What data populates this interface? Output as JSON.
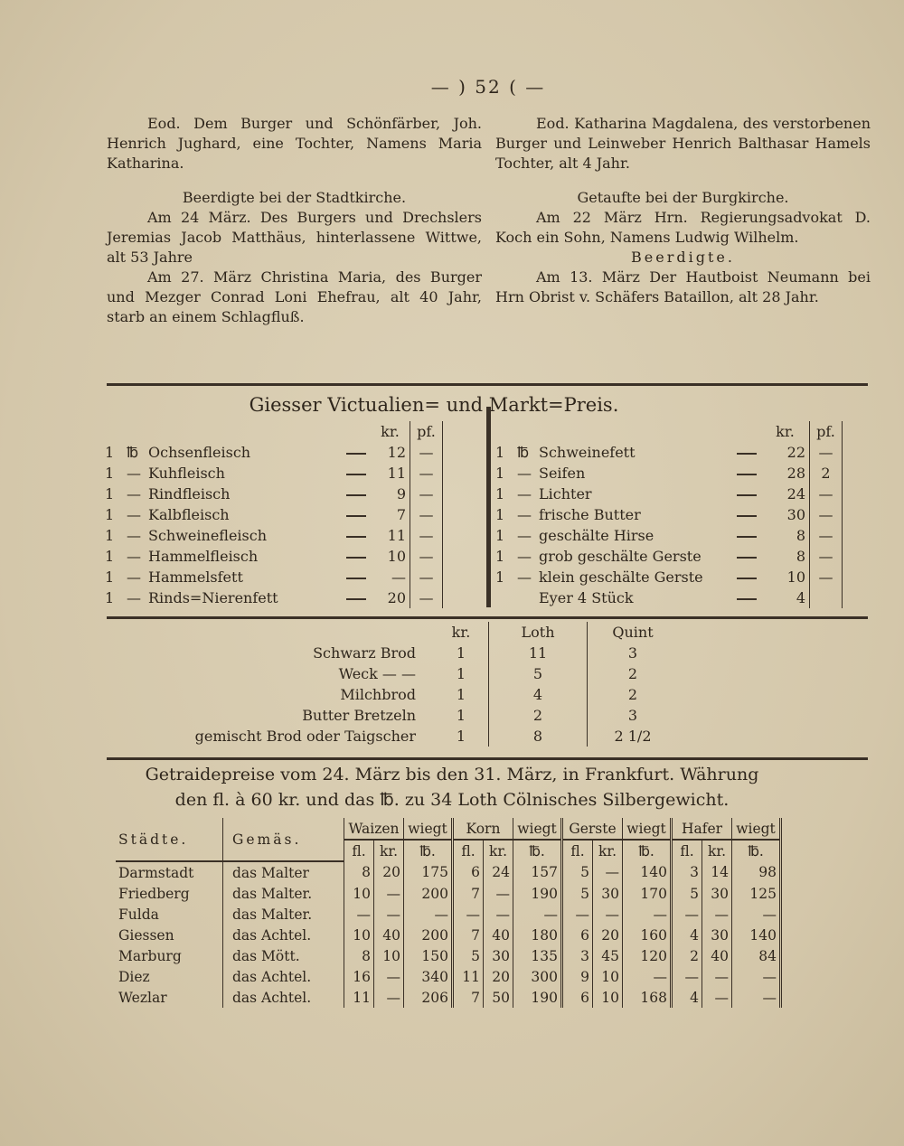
{
  "page_number": "— ) 52 ( —",
  "left_column": {
    "para1": "Eod. Dem Burger und Schönfärber, Joh. Henrich Jughard, eine Tochter, Namens Maria Katharina.",
    "heading": "Beerdigte bei der Stadtkirche.",
    "para2": "Am 24 März. Des Burgers und Drechslers Jeremias Jacob Matthäus, hinterlassene Wittwe, alt 53 Jahre",
    "para3": "Am 27. März Christina Maria, des Burger und Mezger Conrad Loni Ehefrau, alt 40 Jahr, starb an einem Schlagfluß."
  },
  "right_column": {
    "para1": "Eod. Katharina Magdalena, des verstorbenen Burger und Leinweber Henrich Balthasar Hamels Tochter, alt 4 Jahr.",
    "heading1": "Getaufte bei der Burgkirche.",
    "para2": "Am 22 März Hrn. Regierungsadvokat D. Koch ein Sohn, Namens Ludwig Wilhelm.",
    "heading2": "Beerdigte.",
    "para3": "Am 13. März Der Hautboist Neumann bei Hrn Obrist v. Schäfers Bataillon, alt 28 Jahr."
  },
  "market": {
    "title": "Giesser Victualien= und Markt=Preis.",
    "col_kr": "kr.",
    "col_pf": "pf.",
    "left": [
      {
        "qty": "1",
        "unit": "℔",
        "item": "Ochsenfleisch",
        "kr": "12",
        "pf": "—"
      },
      {
        "qty": "1",
        "unit": "—",
        "item": "Kuhfleisch",
        "kr": "11",
        "pf": "—"
      },
      {
        "qty": "1",
        "unit": "—",
        "item": "Rindfleisch",
        "kr": "9",
        "pf": "—"
      },
      {
        "qty": "1",
        "unit": "—",
        "item": "Kalbfleisch",
        "kr": "7",
        "pf": "—"
      },
      {
        "qty": "1",
        "unit": "—",
        "item": "Schweinefleisch",
        "kr": "11",
        "pf": "—"
      },
      {
        "qty": "1",
        "unit": "—",
        "item": "Hammelfleisch",
        "kr": "10",
        "pf": "—"
      },
      {
        "qty": "1",
        "unit": "—",
        "item": "Hammelsfett",
        "kr": "—",
        "pf": "—"
      },
      {
        "qty": "1",
        "unit": "—",
        "item": "Rinds=Nierenfett",
        "kr": "20",
        "pf": "—"
      }
    ],
    "right": [
      {
        "qty": "1",
        "unit": "℔",
        "item": "Schweinefett",
        "kr": "22",
        "pf": "—"
      },
      {
        "qty": "1",
        "unit": "—",
        "item": "Seifen",
        "kr": "28",
        "pf": "2"
      },
      {
        "qty": "1",
        "unit": "—",
        "item": "Lichter",
        "kr": "24",
        "pf": "—"
      },
      {
        "qty": "1",
        "unit": "—",
        "item": "frische Butter",
        "kr": "30",
        "pf": "—"
      },
      {
        "qty": "1",
        "unit": "—",
        "item": "geschälte Hirse",
        "kr": "8",
        "pf": "—"
      },
      {
        "qty": "1",
        "unit": "—",
        "item": "grob geschälte Gerste",
        "kr": "8",
        "pf": "—"
      },
      {
        "qty": "1",
        "unit": "—",
        "item": "klein geschälte Gerste",
        "kr": "10",
        "pf": "—"
      },
      {
        "qty": "",
        "unit": "",
        "item": "Eyer 4 Stück",
        "kr": "4",
        "pf": ""
      }
    ]
  },
  "bread": {
    "headers": [
      "kr.",
      "Loth",
      "Quint"
    ],
    "rows": [
      {
        "item": "Schwarz Brod",
        "kr": "1",
        "loth": "11",
        "quint": "3"
      },
      {
        "item": "Weck — —",
        "kr": "1",
        "loth": "5",
        "quint": "2"
      },
      {
        "item": "Milchbrod",
        "kr": "1",
        "loth": "4",
        "quint": "2"
      },
      {
        "item": "Butter Bretzeln",
        "kr": "1",
        "loth": "2",
        "quint": "3"
      },
      {
        "item": "gemischt Brod oder Taigscher",
        "kr": "1",
        "loth": "8",
        "quint": "2 1/2"
      }
    ]
  },
  "grain": {
    "title1": "Getraidepreise vom 24. März bis den 31. März, in Frankfurt. Währung",
    "title2": "den fl. à 60 kr. und das ℔. zu 34 Loth Cölnisches Silbergewicht.",
    "h_city": "Städte.",
    "h_measure": "Gemäs.",
    "groups": [
      "Waizen",
      "Korn",
      "Gerste",
      "Hafer"
    ],
    "h_weight": "wiegt",
    "sub": [
      "fl.",
      "kr.",
      "℔."
    ],
    "rows": [
      {
        "city": "Darmstadt",
        "measure": "das Malter",
        "v": [
          "8",
          "20",
          "175",
          "6",
          "24",
          "157",
          "5",
          "—",
          "140",
          "3",
          "14",
          "98"
        ]
      },
      {
        "city": "Friedberg",
        "measure": "das Malter.",
        "v": [
          "10",
          "—",
          "200",
          "7",
          "—",
          "190",
          "5",
          "30",
          "170",
          "5",
          "30",
          "125"
        ]
      },
      {
        "city": "Fulda",
        "measure": "das Malter.",
        "v": [
          "—",
          "—",
          "—",
          "—",
          "—",
          "—",
          "—",
          "—",
          "—",
          "—",
          "—",
          "—"
        ]
      },
      {
        "city": "Giessen",
        "measure": "das Achtel.",
        "v": [
          "10",
          "40",
          "200",
          "7",
          "40",
          "180",
          "6",
          "20",
          "160",
          "4",
          "30",
          "140"
        ]
      },
      {
        "city": "Marburg",
        "measure": "das Mött.",
        "v": [
          "8",
          "10",
          "150",
          "5",
          "30",
          "135",
          "3",
          "45",
          "120",
          "2",
          "40",
          "84"
        ]
      },
      {
        "city": "Diez",
        "measure": "das Achtel.",
        "v": [
          "16",
          "—",
          "340",
          "11",
          "20",
          "300",
          "9",
          "10",
          "—",
          "—",
          "—",
          "—"
        ]
      },
      {
        "city": "Wezlar",
        "measure": "das Achtel.",
        "v": [
          "11",
          "—",
          "206",
          "7",
          "50",
          "190",
          "6",
          "10",
          "168",
          "4",
          "—",
          "—"
        ]
      }
    ]
  }
}
